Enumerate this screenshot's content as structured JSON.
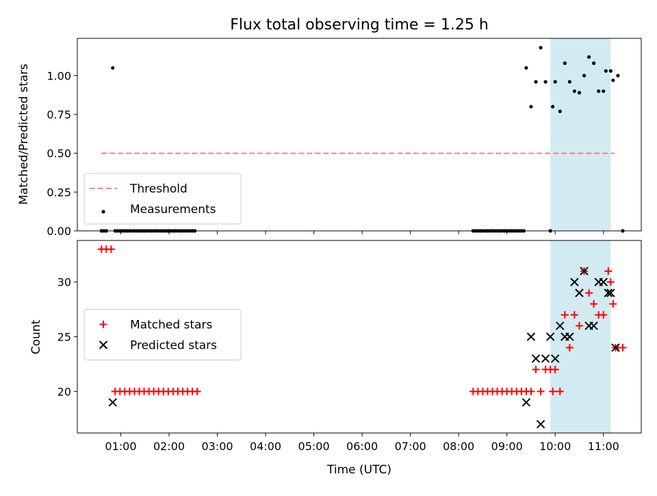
{
  "figure": {
    "title": "Flux total observing time = 1.25 h",
    "xlabel": "Time (UTC)",
    "xticks": [
      {
        "label": "01:00",
        "h": 1
      },
      {
        "label": "02:00",
        "h": 2
      },
      {
        "label": "03:00",
        "h": 3
      },
      {
        "label": "04:00",
        "h": 4
      },
      {
        "label": "05:00",
        "h": 5
      },
      {
        "label": "06:00",
        "h": 6
      },
      {
        "label": "07:00",
        "h": 7
      },
      {
        "label": "08:00",
        "h": 8
      },
      {
        "label": "09:00",
        "h": 9
      },
      {
        "label": "10:00",
        "h": 10
      },
      {
        "label": "11:00",
        "h": 11
      }
    ],
    "xlim": [
      "00:06",
      "11:47"
    ],
    "shaded_span": {
      "start": "09:54",
      "end": "11:09",
      "color": "#add8e6"
    }
  },
  "chart_data": [
    {
      "type": "scatter",
      "ylabel": "Matched/Predicted stars",
      "ylim": [
        0,
        1.24
      ],
      "yticks": [
        "0.00",
        "0.25",
        "0.50",
        "0.75",
        "1.00"
      ],
      "legend_position": "lower-left",
      "threshold": {
        "name": "Threshold",
        "value": 0.5,
        "x_start": "00:36",
        "x_end": "11:14",
        "color": "#ff8080",
        "style": "dashed"
      },
      "series": [
        {
          "name": "Measurements",
          "color": "#000000",
          "marker": "dot",
          "points": [
            [
              "00:36",
              0
            ],
            [
              "00:39",
              0
            ],
            [
              "00:42",
              0
            ],
            [
              "00:50",
              1.05
            ],
            [
              "00:53",
              0
            ],
            [
              "00:56",
              0
            ],
            [
              "00:59",
              0
            ],
            [
              "01:02",
              0
            ],
            [
              "01:05",
              0
            ],
            [
              "01:08",
              0
            ],
            [
              "01:11",
              0
            ],
            [
              "01:14",
              0
            ],
            [
              "01:17",
              0
            ],
            [
              "01:20",
              0
            ],
            [
              "01:23",
              0
            ],
            [
              "01:26",
              0
            ],
            [
              "01:29",
              0
            ],
            [
              "01:32",
              0
            ],
            [
              "01:35",
              0
            ],
            [
              "01:38",
              0
            ],
            [
              "01:41",
              0
            ],
            [
              "01:44",
              0
            ],
            [
              "01:47",
              0
            ],
            [
              "01:50",
              0
            ],
            [
              "01:53",
              0
            ],
            [
              "01:56",
              0
            ],
            [
              "01:59",
              0
            ],
            [
              "02:02",
              0
            ],
            [
              "02:05",
              0
            ],
            [
              "02:08",
              0
            ],
            [
              "02:11",
              0
            ],
            [
              "02:14",
              0
            ],
            [
              "02:17",
              0
            ],
            [
              "02:20",
              0
            ],
            [
              "02:23",
              0
            ],
            [
              "02:26",
              0
            ],
            [
              "02:29",
              0
            ],
            [
              "02:32",
              0
            ],
            [
              "08:18",
              0
            ],
            [
              "08:21",
              0
            ],
            [
              "08:24",
              0
            ],
            [
              "08:27",
              0
            ],
            [
              "08:30",
              0
            ],
            [
              "08:33",
              0
            ],
            [
              "08:36",
              0
            ],
            [
              "08:39",
              0
            ],
            [
              "08:42",
              0
            ],
            [
              "08:45",
              0
            ],
            [
              "08:48",
              0
            ],
            [
              "08:51",
              0
            ],
            [
              "08:54",
              0
            ],
            [
              "08:57",
              0
            ],
            [
              "09:00",
              0
            ],
            [
              "09:03",
              0
            ],
            [
              "09:06",
              0
            ],
            [
              "09:09",
              0
            ],
            [
              "09:12",
              0
            ],
            [
              "09:15",
              0
            ],
            [
              "09:18",
              0
            ],
            [
              "09:21",
              0
            ],
            [
              "09:24",
              1.05
            ],
            [
              "09:30",
              0.8
            ],
            [
              "09:36",
              0.96
            ],
            [
              "09:42",
              1.18
            ],
            [
              "09:48",
              0.96
            ],
            [
              "09:54",
              0
            ],
            [
              "09:57",
              0.8
            ],
            [
              "10:00",
              0.96
            ],
            [
              "10:06",
              0.77
            ],
            [
              "10:12",
              1.08
            ],
            [
              "10:18",
              0.96
            ],
            [
              "10:24",
              0.9
            ],
            [
              "10:30",
              0.89
            ],
            [
              "10:36",
              1.0
            ],
            [
              "10:42",
              1.12
            ],
            [
              "10:48",
              1.08
            ],
            [
              "10:54",
              0.9
            ],
            [
              "11:00",
              0.9
            ],
            [
              "11:03",
              1.03
            ],
            [
              "11:09",
              1.03
            ],
            [
              "11:12",
              0.97
            ],
            [
              "11:18",
              1.0
            ],
            [
              "11:24",
              0
            ]
          ]
        }
      ]
    },
    {
      "type": "scatter",
      "ylabel": "Count",
      "ylim": [
        16.2,
        33.8
      ],
      "yticks": [
        "20",
        "25",
        "30"
      ],
      "legend_position": "center-left",
      "series": [
        {
          "name": "Matched stars",
          "color": "#ff0000",
          "marker": "plus",
          "points": [
            [
              "00:36",
              33
            ],
            [
              "00:42",
              33
            ],
            [
              "00:48",
              33
            ],
            [
              "00:53",
              20
            ],
            [
              "00:59",
              20
            ],
            [
              "01:05",
              20
            ],
            [
              "01:11",
              20
            ],
            [
              "01:17",
              20
            ],
            [
              "01:23",
              20
            ],
            [
              "01:29",
              20
            ],
            [
              "01:35",
              20
            ],
            [
              "01:41",
              20
            ],
            [
              "01:47",
              20
            ],
            [
              "01:53",
              20
            ],
            [
              "01:59",
              20
            ],
            [
              "02:05",
              20
            ],
            [
              "02:11",
              20
            ],
            [
              "02:17",
              20
            ],
            [
              "02:23",
              20
            ],
            [
              "02:29",
              20
            ],
            [
              "02:35",
              20
            ],
            [
              "08:18",
              20
            ],
            [
              "08:24",
              20
            ],
            [
              "08:30",
              20
            ],
            [
              "08:36",
              20
            ],
            [
              "08:42",
              20
            ],
            [
              "08:48",
              20
            ],
            [
              "08:54",
              20
            ],
            [
              "09:00",
              20
            ],
            [
              "09:06",
              20
            ],
            [
              "09:12",
              20
            ],
            [
              "09:18",
              20
            ],
            [
              "09:24",
              20
            ],
            [
              "09:30",
              20
            ],
            [
              "09:36",
              22
            ],
            [
              "09:48",
              22
            ],
            [
              "09:54",
              22
            ],
            [
              "10:00",
              22
            ],
            [
              "09:42",
              20
            ],
            [
              "09:57",
              20
            ],
            [
              "10:06",
              20
            ],
            [
              "10:12",
              27
            ],
            [
              "10:18",
              24
            ],
            [
              "10:24",
              27
            ],
            [
              "10:30",
              26
            ],
            [
              "10:36",
              31
            ],
            [
              "10:42",
              29
            ],
            [
              "10:48",
              28
            ],
            [
              "10:54",
              27
            ],
            [
              "11:00",
              27
            ],
            [
              "11:06",
              31
            ],
            [
              "11:09",
              30
            ],
            [
              "11:12",
              28
            ],
            [
              "11:15",
              24
            ],
            [
              "11:18",
              24
            ],
            [
              "11:24",
              24
            ]
          ]
        },
        {
          "name": "Predicted stars",
          "color": "#000000",
          "marker": "x",
          "points": [
            [
              "00:50",
              19
            ],
            [
              "09:24",
              19
            ],
            [
              "09:30",
              25
            ],
            [
              "09:36",
              23
            ],
            [
              "09:42",
              17
            ],
            [
              "09:48",
              23
            ],
            [
              "09:54",
              25
            ],
            [
              "10:00",
              23
            ],
            [
              "10:06",
              26
            ],
            [
              "10:12",
              25
            ],
            [
              "10:18",
              25
            ],
            [
              "10:24",
              30
            ],
            [
              "10:30",
              29
            ],
            [
              "10:36",
              31
            ],
            [
              "10:42",
              26
            ],
            [
              "10:48",
              26
            ],
            [
              "10:54",
              30
            ],
            [
              "11:00",
              30
            ],
            [
              "11:06",
              29
            ],
            [
              "11:09",
              29
            ],
            [
              "11:15",
              24
            ]
          ]
        }
      ]
    }
  ]
}
